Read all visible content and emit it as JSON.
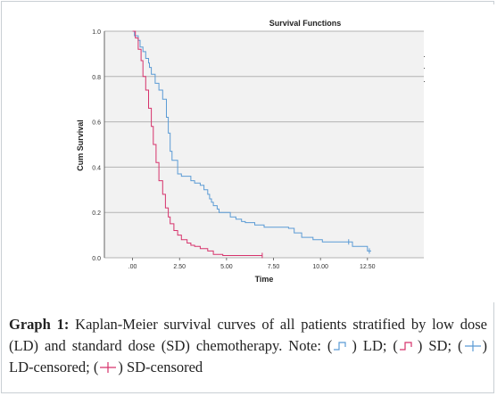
{
  "chart_data": {
    "type": "line",
    "step": true,
    "title": "Survival Functions",
    "xlabel": "Time",
    "ylabel": "Cum Survival",
    "xlim": [
      -1.5,
      15.5
    ],
    "ylim": [
      0,
      1.0
    ],
    "x_ticks": [
      0,
      2.5,
      5,
      7.5,
      10,
      12.5
    ],
    "x_tick_labels": [
      ".00",
      "2.50",
      "5.00",
      "7.50",
      "10.00",
      "12.50"
    ],
    "y_ticks": [
      0,
      0.2,
      0.4,
      0.6,
      0.8,
      1.0
    ],
    "y_tick_labels": [
      "0.0",
      "0.2",
      "0.4",
      "0.6",
      "0.8",
      "1.0"
    ],
    "grid": "horizontal",
    "legend": "top-right",
    "series": [
      {
        "name": "LD",
        "color": "#5b9bd5",
        "x": [
          0,
          0.1,
          0.3,
          0.4,
          0.55,
          0.7,
          0.85,
          0.9,
          1.0,
          1.2,
          1.4,
          1.6,
          1.8,
          1.9,
          2.0,
          2.1,
          2.4,
          2.6,
          3.0,
          3.1,
          3.3,
          3.5,
          3.6,
          3.8,
          4.0,
          4.1,
          4.2,
          4.3,
          4.5,
          4.6,
          4.8,
          5.2,
          5.5,
          5.8,
          6.0,
          6.5,
          7.0,
          7.8,
          8.3,
          8.6,
          9.0,
          9.4,
          9.6,
          10.1,
          11.1,
          11.7,
          12.5,
          12.7
        ],
        "y": [
          1.0,
          0.98,
          0.96,
          0.93,
          0.91,
          0.88,
          0.86,
          0.84,
          0.81,
          0.77,
          0.74,
          0.7,
          0.62,
          0.55,
          0.47,
          0.43,
          0.37,
          0.36,
          0.36,
          0.34,
          0.33,
          0.33,
          0.32,
          0.3,
          0.28,
          0.26,
          0.245,
          0.23,
          0.215,
          0.2,
          0.2,
          0.18,
          0.17,
          0.16,
          0.155,
          0.145,
          0.135,
          0.135,
          0.13,
          0.11,
          0.09,
          0.09,
          0.08,
          0.07,
          0.07,
          0.05,
          0.03,
          0.03
        ],
        "censored": [
          [
            11.5,
            0.07
          ],
          [
            12.6,
            0.03
          ]
        ]
      },
      {
        "name": "SD",
        "color": "#d6336c",
        "x": [
          0,
          0.15,
          0.3,
          0.45,
          0.55,
          0.7,
          0.85,
          1.0,
          1.1,
          1.25,
          1.4,
          1.6,
          1.75,
          1.9,
          2.0,
          2.2,
          2.4,
          2.6,
          2.9,
          3.1,
          3.3,
          3.6,
          4.0,
          4.3,
          4.8,
          6.9
        ],
        "y": [
          1.0,
          0.97,
          0.92,
          0.87,
          0.8,
          0.74,
          0.66,
          0.58,
          0.5,
          0.42,
          0.34,
          0.28,
          0.22,
          0.18,
          0.15,
          0.12,
          0.1,
          0.08,
          0.065,
          0.055,
          0.05,
          0.04,
          0.03,
          0.015,
          0.01,
          0.01
        ],
        "censored": [
          [
            6.9,
            0.01
          ]
        ]
      }
    ]
  },
  "caption": {
    "label": "Graph 1:",
    "text_main": " Kaplan-Meier survival curves of all patients stratified by low dose (LD) and standard dose (SD) chemotherapy. Note: (",
    "text_ld": ") LD;",
    "text_open2": " (",
    "text_sd": ") SD; (",
    "text_ldc": ") LD-censored; (",
    "text_sdc": ") SD-censored"
  }
}
